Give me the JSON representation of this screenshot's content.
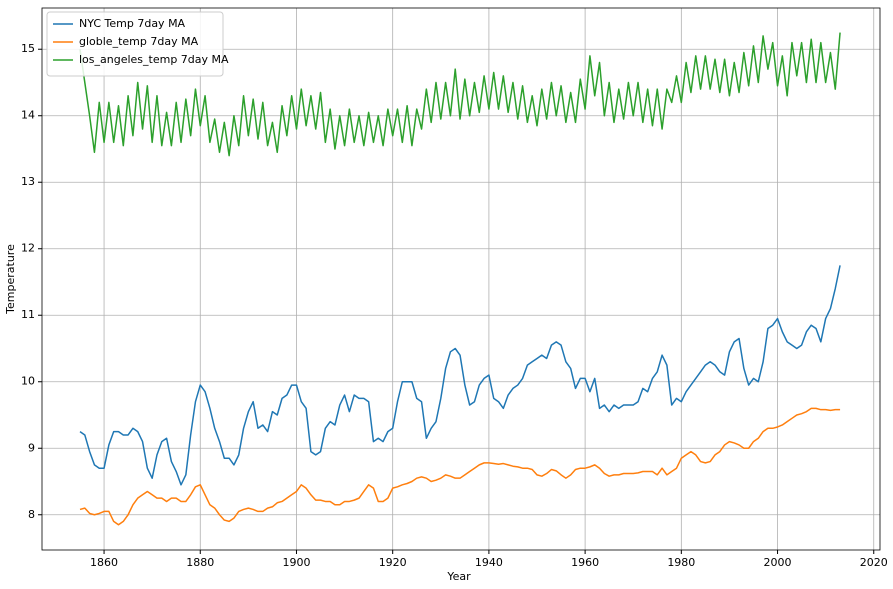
{
  "chart_data": {
    "type": "line",
    "xlabel": "Year",
    "ylabel": "Temperature",
    "x": [
      1855,
      1856,
      1857,
      1858,
      1859,
      1860,
      1861,
      1862,
      1863,
      1864,
      1865,
      1866,
      1867,
      1868,
      1869,
      1870,
      1871,
      1872,
      1873,
      1874,
      1875,
      1876,
      1877,
      1878,
      1879,
      1880,
      1881,
      1882,
      1883,
      1884,
      1885,
      1886,
      1887,
      1888,
      1889,
      1890,
      1891,
      1892,
      1893,
      1894,
      1895,
      1896,
      1897,
      1898,
      1899,
      1900,
      1901,
      1902,
      1903,
      1904,
      1905,
      1906,
      1907,
      1908,
      1909,
      1910,
      1911,
      1912,
      1913,
      1914,
      1915,
      1916,
      1917,
      1918,
      1919,
      1920,
      1921,
      1922,
      1923,
      1924,
      1925,
      1926,
      1927,
      1928,
      1929,
      1930,
      1931,
      1932,
      1933,
      1934,
      1935,
      1936,
      1937,
      1938,
      1939,
      1940,
      1941,
      1942,
      1943,
      1944,
      1945,
      1946,
      1947,
      1948,
      1949,
      1950,
      1951,
      1952,
      1953,
      1954,
      1955,
      1956,
      1957,
      1958,
      1959,
      1960,
      1961,
      1962,
      1963,
      1964,
      1965,
      1966,
      1967,
      1968,
      1969,
      1970,
      1971,
      1972,
      1973,
      1974,
      1975,
      1976,
      1977,
      1978,
      1979,
      1980,
      1981,
      1982,
      1983,
      1984,
      1985,
      1986,
      1987,
      1988,
      1989,
      1990,
      1991,
      1992,
      1993,
      1994,
      1995,
      1996,
      1997,
      1998,
      1999,
      2000,
      2001,
      2002,
      2003,
      2004,
      2005,
      2006,
      2007,
      2008,
      2009,
      2010,
      2011,
      2012,
      2013
    ],
    "series": [
      {
        "name": "NYC Temp 7day MA",
        "color": "#1f77b4",
        "values": [
          9.25,
          9.2,
          8.95,
          8.75,
          8.7,
          8.7,
          9.05,
          9.25,
          9.25,
          9.2,
          9.2,
          9.3,
          9.25,
          9.1,
          8.7,
          8.55,
          8.9,
          9.1,
          9.15,
          8.8,
          8.65,
          8.45,
          8.6,
          9.2,
          9.7,
          9.95,
          9.85,
          9.6,
          9.3,
          9.1,
          8.85,
          8.85,
          8.75,
          8.9,
          9.3,
          9.55,
          9.7,
          9.3,
          9.35,
          9.25,
          9.55,
          9.5,
          9.75,
          9.8,
          9.95,
          9.95,
          9.7,
          9.6,
          8.95,
          8.9,
          8.95,
          9.3,
          9.4,
          9.35,
          9.65,
          9.8,
          9.55,
          9.8,
          9.75,
          9.75,
          9.7,
          9.1,
          9.15,
          9.1,
          9.25,
          9.3,
          9.7,
          10.0,
          10.0,
          10.0,
          9.75,
          9.7,
          9.15,
          9.3,
          9.4,
          9.75,
          10.2,
          10.45,
          10.5,
          10.4,
          9.95,
          9.65,
          9.7,
          9.95,
          10.05,
          10.1,
          9.75,
          9.7,
          9.6,
          9.8,
          9.9,
          9.95,
          10.05,
          10.25,
          10.3,
          10.35,
          10.4,
          10.35,
          10.55,
          10.6,
          10.55,
          10.3,
          10.2,
          9.9,
          10.05,
          10.05,
          9.85,
          10.05,
          9.6,
          9.65,
          9.55,
          9.65,
          9.6,
          9.65,
          9.65,
          9.65,
          9.7,
          9.9,
          9.85,
          10.05,
          10.15,
          10.4,
          10.25,
          9.65,
          9.75,
          9.7,
          9.85,
          9.95,
          10.05,
          10.15,
          10.25,
          10.3,
          10.25,
          10.15,
          10.1,
          10.45,
          10.6,
          10.65,
          10.2,
          9.95,
          10.05,
          10.0,
          10.3,
          10.8,
          10.85,
          10.95,
          10.75,
          10.6,
          10.55,
          10.5,
          10.55,
          10.75,
          10.85,
          10.8,
          10.6,
          10.95,
          11.1,
          11.4,
          11.75
        ]
      },
      {
        "name": "globle_temp 7day MA",
        "color": "#ff7f0e",
        "values": [
          8.08,
          8.1,
          8.02,
          8.0,
          8.02,
          8.05,
          8.05,
          7.9,
          7.85,
          7.9,
          8.0,
          8.15,
          8.25,
          8.3,
          8.35,
          8.3,
          8.25,
          8.25,
          8.2,
          8.25,
          8.25,
          8.2,
          8.2,
          8.3,
          8.42,
          8.45,
          8.3,
          8.15,
          8.1,
          8.0,
          7.92,
          7.9,
          7.95,
          8.05,
          8.08,
          8.1,
          8.08,
          8.05,
          8.05,
          8.1,
          8.12,
          8.18,
          8.2,
          8.25,
          8.3,
          8.35,
          8.45,
          8.4,
          8.3,
          8.22,
          8.22,
          8.2,
          8.2,
          8.15,
          8.15,
          8.2,
          8.2,
          8.22,
          8.25,
          8.35,
          8.45,
          8.4,
          8.2,
          8.2,
          8.25,
          8.4,
          8.42,
          8.45,
          8.47,
          8.5,
          8.55,
          8.57,
          8.55,
          8.5,
          8.52,
          8.55,
          8.6,
          8.58,
          8.55,
          8.55,
          8.6,
          8.65,
          8.7,
          8.75,
          8.78,
          8.78,
          8.77,
          8.76,
          8.77,
          8.75,
          8.73,
          8.72,
          8.7,
          8.7,
          8.68,
          8.6,
          8.58,
          8.62,
          8.68,
          8.66,
          8.6,
          8.55,
          8.6,
          8.68,
          8.7,
          8.7,
          8.72,
          8.75,
          8.7,
          8.62,
          8.58,
          8.6,
          8.6,
          8.62,
          8.62,
          8.62,
          8.63,
          8.65,
          8.65,
          8.65,
          8.6,
          8.7,
          8.6,
          8.65,
          8.7,
          8.85,
          8.9,
          8.95,
          8.9,
          8.8,
          8.78,
          8.8,
          8.9,
          8.95,
          9.05,
          9.1,
          9.08,
          9.05,
          9.0,
          9.0,
          9.1,
          9.15,
          9.25,
          9.3,
          9.3,
          9.32,
          9.35,
          9.4,
          9.45,
          9.5,
          9.52,
          9.55,
          9.6,
          9.6,
          9.58,
          9.58,
          9.57,
          9.58,
          9.58
        ]
      },
      {
        "name": "los_angeles_temp 7day MA",
        "color": "#2ca02c",
        "values": [
          15.0,
          14.5,
          14.0,
          13.45,
          14.2,
          13.6,
          14.2,
          13.6,
          14.15,
          13.55,
          14.3,
          13.7,
          14.5,
          13.8,
          14.45,
          13.6,
          14.3,
          13.55,
          14.05,
          13.55,
          14.2,
          13.6,
          14.25,
          13.7,
          14.4,
          13.85,
          14.3,
          13.6,
          13.95,
          13.45,
          13.9,
          13.4,
          14.0,
          13.55,
          14.3,
          13.7,
          14.25,
          13.65,
          14.2,
          13.55,
          13.9,
          13.45,
          14.15,
          13.7,
          14.3,
          13.8,
          14.4,
          13.85,
          14.3,
          13.8,
          14.35,
          13.6,
          14.1,
          13.5,
          14.0,
          13.55,
          14.1,
          13.6,
          14.0,
          13.55,
          14.05,
          13.6,
          14.0,
          13.55,
          14.1,
          13.7,
          14.1,
          13.6,
          14.15,
          13.55,
          14.1,
          13.8,
          14.4,
          13.9,
          14.5,
          13.95,
          14.5,
          14.0,
          14.7,
          13.95,
          14.55,
          14.0,
          14.5,
          14.05,
          14.6,
          14.1,
          14.65,
          14.1,
          14.6,
          14.05,
          14.5,
          13.95,
          14.45,
          13.9,
          14.3,
          13.85,
          14.4,
          13.95,
          14.5,
          14.0,
          14.45,
          13.9,
          14.35,
          13.9,
          14.55,
          14.1,
          14.9,
          14.3,
          14.8,
          14.0,
          14.5,
          13.9,
          14.4,
          13.95,
          14.5,
          14.0,
          14.5,
          13.9,
          14.4,
          13.85,
          14.4,
          13.8,
          14.4,
          14.2,
          14.6,
          14.2,
          14.8,
          14.35,
          14.9,
          14.4,
          14.9,
          14.4,
          14.85,
          14.35,
          14.85,
          14.3,
          14.8,
          14.35,
          14.95,
          14.45,
          15.05,
          14.5,
          15.2,
          14.7,
          15.1,
          14.45,
          14.9,
          14.3,
          15.1,
          14.6,
          15.1,
          14.5,
          15.15,
          14.5,
          15.1,
          14.5,
          14.95,
          14.4,
          15.25
        ]
      }
    ],
    "xlim": [
      1847.1,
      2021.3
    ],
    "xticks": [
      1860,
      1880,
      1900,
      1920,
      1940,
      1960,
      1980,
      2000,
      2020
    ],
    "ylim": [
      7.47,
      15.62
    ],
    "yticks": [
      8,
      9,
      10,
      11,
      12,
      13,
      14,
      15
    ],
    "grid": true,
    "legend": "upper left"
  }
}
